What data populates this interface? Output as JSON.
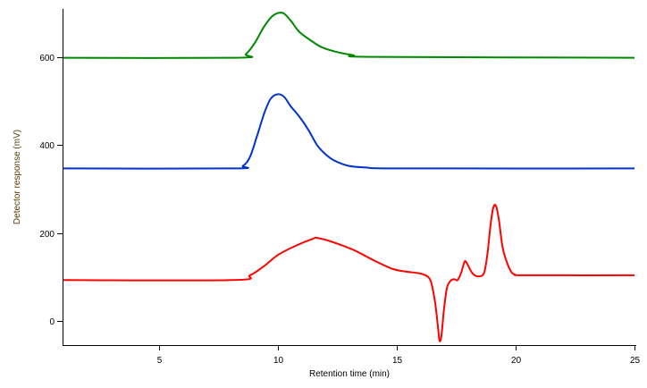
{
  "chart_data": {
    "type": "line",
    "title": "",
    "xlabel": "Retention time (min)",
    "ylabel": "Detector response (mV)",
    "xlim": [
      0.94,
      25
    ],
    "ylim": [
      -55,
      710
    ],
    "xticks": [
      5,
      10,
      15,
      20,
      25
    ],
    "yticks": [
      0,
      200,
      400,
      600
    ],
    "grid": false,
    "legend": "none",
    "series": [
      {
        "color": "#ff0000",
        "x": [
          0.94,
          8.08,
          8.83,
          9.4,
          10.0,
          10.71,
          11.47,
          11.65,
          12.22,
          13.16,
          14.1,
          14.85,
          15.41,
          15.98,
          16.32,
          16.47,
          16.62,
          16.73,
          16.8,
          16.88,
          16.99,
          17.11,
          17.26,
          17.41,
          17.56,
          17.71,
          17.82,
          17.89,
          18.0,
          18.16,
          18.35,
          18.61,
          18.72,
          18.83,
          18.95,
          19.06,
          19.17,
          19.29,
          19.44,
          19.59,
          19.77,
          19.96,
          20.49,
          25.0
        ],
        "y": [
          93,
          93,
          104,
          124,
          150,
          170,
          187,
          189,
          181,
          162,
          136,
          118,
          112,
          108,
          100,
          83,
          39,
          -12,
          -45,
          -33,
          28,
          75,
          91,
          95,
          93,
          110,
          130,
          136,
          126,
          110,
          102,
          104,
          120,
          160,
          221,
          258,
          262,
          232,
          171,
          140,
          116,
          106,
          104,
          104
        ]
      },
      {
        "color": "#0033cc",
        "x": [
          0.94,
          8.08,
          8.53,
          8.83,
          9.14,
          9.44,
          9.7,
          10.0,
          10.26,
          10.53,
          10.9,
          11.28,
          11.65,
          12.03,
          12.41,
          12.97,
          13.72,
          15.23,
          25.0
        ],
        "y": [
          347,
          347,
          353,
          374,
          424,
          475,
          506,
          516,
          510,
          489,
          465,
          435,
          400,
          378,
          364,
          353,
          349,
          347,
          347
        ]
      },
      {
        "color": "#008800",
        "x": [
          0.94,
          8.27,
          8.65,
          9.02,
          9.4,
          9.77,
          10.19,
          10.53,
          10.9,
          11.39,
          11.84,
          12.41,
          13.16,
          14.1,
          25.0
        ],
        "y": [
          599,
          599,
          607,
          632,
          668,
          694,
          701,
          684,
          658,
          638,
          623,
          613,
          605,
          601,
          599
        ]
      }
    ]
  }
}
